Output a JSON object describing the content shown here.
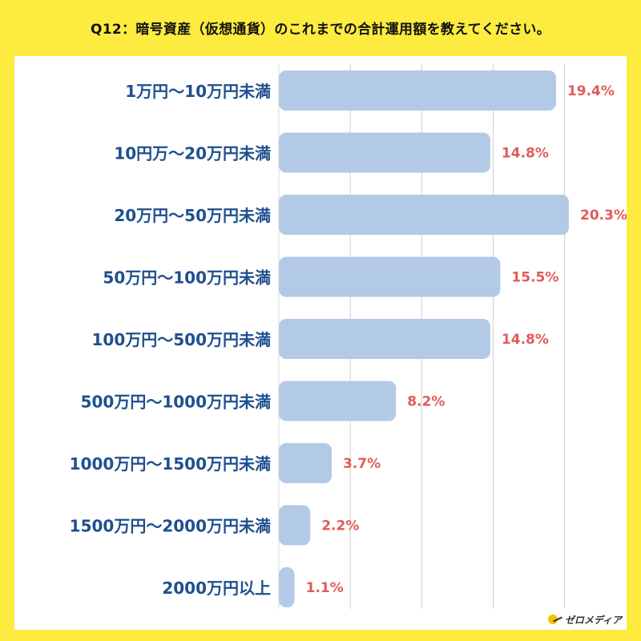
{
  "title": "Q12：暗号資産（仮想通貨）のこれまでの合計運用額を教えてください。",
  "logo": "ゼロメディア",
  "colors": {
    "background": "#FDEB3F",
    "bar": "#B3CAE6",
    "value_label": "#E05B5B",
    "category_label": "#1F4F8F",
    "grid": "#CFCFCF"
  },
  "chart_data": {
    "type": "bar",
    "orientation": "horizontal",
    "title": "Q12：暗号資産（仮想通貨）のこれまでの合計運用額を教えてください。",
    "categories": [
      "1万円〜10万円未満",
      "10円万〜20万円未満",
      "20万円〜50万円未満",
      "50万円〜100万円未満",
      "100万円〜500万円未満",
      "500万円〜1000万円未満",
      "1000万円〜1500万円未満",
      "1500万円〜2000万円未満",
      "2000万円以上"
    ],
    "values": [
      19.4,
      14.8,
      20.3,
      15.5,
      14.8,
      8.2,
      3.7,
      2.2,
      1.1
    ],
    "value_labels": [
      "19.4%",
      "14.8%",
      "20.3%",
      "15.5%",
      "14.8%",
      "8.2%",
      "3.7%",
      "2.2%",
      "1.1%"
    ],
    "xlim": [
      0,
      20.3
    ],
    "grid": true,
    "xlabel": "",
    "ylabel": ""
  }
}
